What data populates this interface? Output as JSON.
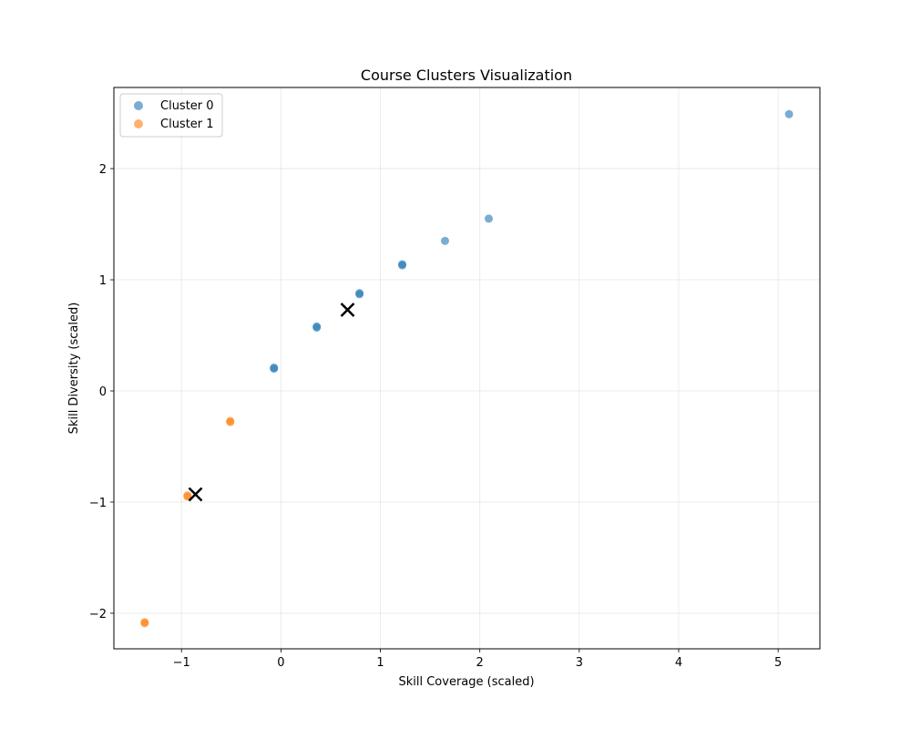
{
  "chart_data": {
    "type": "scatter",
    "title": "Course Clusters Visualization",
    "xlabel": "Skill Coverage (scaled)",
    "ylabel": "Skill Diversity (scaled)",
    "xlim": [
      -1.68,
      5.42
    ],
    "ylim": [
      -2.32,
      2.73
    ],
    "xticks": [
      -1,
      0,
      1,
      2,
      3,
      4,
      5
    ],
    "yticks": [
      -2,
      -1,
      0,
      1,
      2
    ],
    "grid": true,
    "legend_position": "top-left",
    "series": [
      {
        "name": "Cluster 0",
        "color": "#1f77b4",
        "points": [
          {
            "x": -0.07,
            "y": 0.2
          },
          {
            "x": -0.07,
            "y": 0.21
          },
          {
            "x": 0.36,
            "y": 0.57
          },
          {
            "x": 0.36,
            "y": 0.58
          },
          {
            "x": 0.79,
            "y": 0.87
          },
          {
            "x": 0.79,
            "y": 0.88
          },
          {
            "x": 1.22,
            "y": 1.13
          },
          {
            "x": 1.22,
            "y": 1.14
          },
          {
            "x": 1.65,
            "y": 1.35
          },
          {
            "x": 2.09,
            "y": 1.55
          },
          {
            "x": 5.11,
            "y": 2.49
          }
        ]
      },
      {
        "name": "Cluster 1",
        "color": "#ff7f0e",
        "points": [
          {
            "x": -0.51,
            "y": -0.27
          },
          {
            "x": -0.51,
            "y": -0.28
          },
          {
            "x": -0.94,
            "y": -0.94
          },
          {
            "x": -0.94,
            "y": -0.95
          },
          {
            "x": -1.37,
            "y": -2.08
          },
          {
            "x": -1.37,
            "y": -2.09
          }
        ]
      }
    ],
    "centroids": [
      {
        "x": 0.67,
        "y": 0.73
      },
      {
        "x": -0.86,
        "y": -0.93
      }
    ]
  }
}
